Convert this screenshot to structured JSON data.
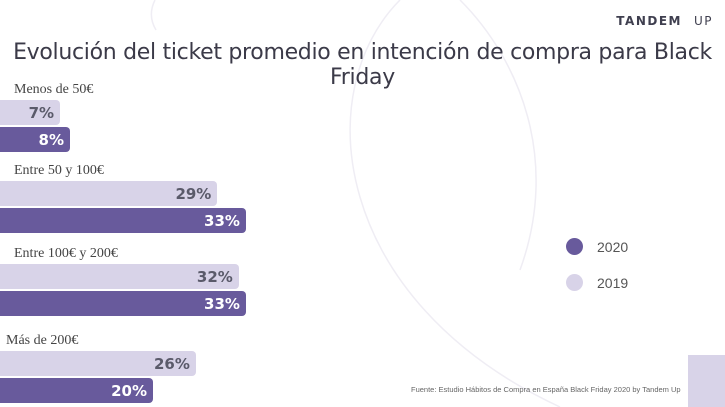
{
  "brand": {
    "name": "TANDEM",
    "suffix": "UP"
  },
  "chart_data": {
    "type": "bar",
    "orientation": "horizontal",
    "title": "Evolución del ticket promedio en intención de compra para  Black Friday",
    "categories": [
      "Menos de 50€",
      "Entre 50 y 100€",
      "Entre 100€ y 200€",
      "Más de 200€"
    ],
    "series": [
      {
        "name": "2019",
        "color": "#d8d3e8",
        "values": [
          7,
          29,
          32,
          26
        ]
      },
      {
        "name": "2020",
        "color": "#685a9c",
        "values": [
          8,
          33,
          33,
          20
        ]
      }
    ],
    "value_labels": {
      "2019": [
        "7%",
        "29%",
        "32%",
        "26%"
      ],
      "2020": [
        "8%",
        "33%",
        "33%",
        "20%"
      ]
    },
    "unit": "%",
    "legend": {
      "placement": "right",
      "order": [
        "2020",
        "2019"
      ]
    },
    "grid": false
  },
  "source": "Fuente: Estudio Hábitos de Compra en España Black Friday 2020 by Tandem Up"
}
